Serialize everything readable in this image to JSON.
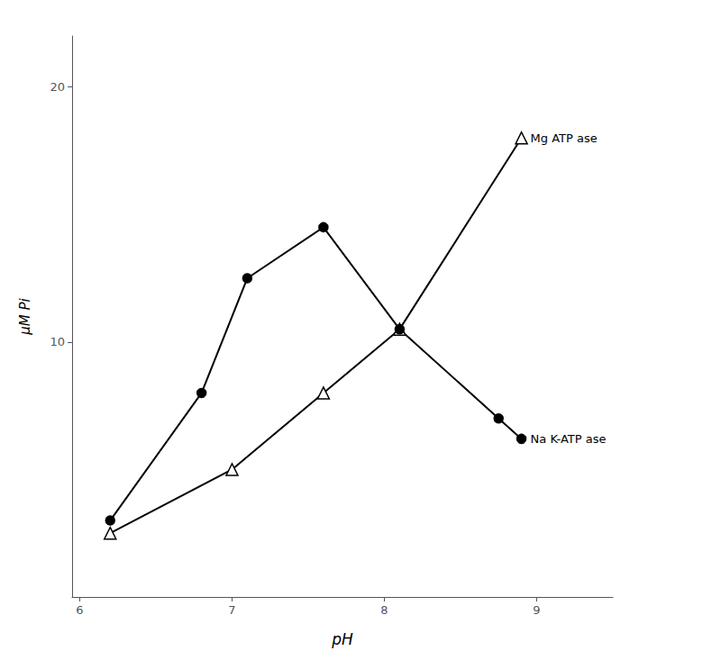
{
  "chart_data": {
    "type": "line",
    "xlabel": "pH",
    "ylabel": "μM Pi",
    "series": [
      {
        "name": "Mg ATP ase",
        "color": "black",
        "marker": "open_triangle",
        "x": [
          6.2,
          7.0,
          7.6,
          8.1,
          8.9
        ],
        "values": [
          2.5,
          5.0,
          8.0,
          10.5,
          18.0
        ]
      },
      {
        "name": "Na K-ATP ase",
        "color": "black",
        "marker": "circle",
        "x": [
          6.2,
          6.8,
          7.1,
          7.6,
          8.1,
          8.75,
          8.9
        ],
        "values": [
          3.0,
          8.0,
          12.5,
          14.5,
          10.5,
          7.0,
          6.2
        ]
      }
    ],
    "xlim": [
      5.95,
      9.5
    ],
    "ylim": [
      0,
      22
    ],
    "xticks": [
      6,
      7,
      8,
      9
    ],
    "yticks": [
      10,
      20
    ],
    "grid": false
  }
}
